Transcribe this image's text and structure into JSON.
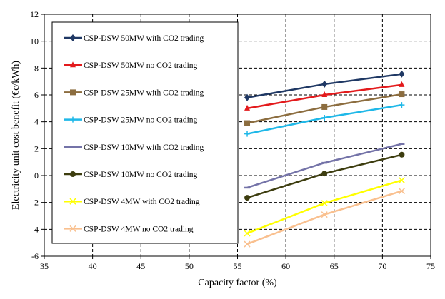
{
  "chart_data": {
    "type": "line",
    "title": "",
    "xlabel": "Capacity factor (%)",
    "ylabel": "Electricity unit cost benefit (€c/kWh)",
    "xlim": [
      35,
      75
    ],
    "ylim": [
      -6,
      12
    ],
    "xticks": [
      35,
      40,
      45,
      50,
      55,
      60,
      65,
      70,
      75
    ],
    "yticks": [
      -6,
      -4,
      -2,
      0,
      2,
      4,
      6,
      8,
      10,
      12
    ],
    "grid": true,
    "legend_position": "left",
    "series": [
      {
        "name": "CSP-DSW 50MW with CO2 trading",
        "color": "#1f3864",
        "marker": "diamond",
        "x": [
          56,
          64,
          72
        ],
        "values": [
          5.8,
          6.8,
          7.55
        ]
      },
      {
        "name": "CSP-DSW 50MW no CO2 trading",
        "color": "#e31a1c",
        "marker": "triangle",
        "x": [
          56,
          64,
          72
        ],
        "values": [
          5.0,
          6.0,
          6.75
        ]
      },
      {
        "name": "CSP-DSW 25MW with CO2 trading",
        "color": "#8c6d3f",
        "marker": "square",
        "x": [
          56,
          64,
          72
        ],
        "values": [
          3.9,
          5.1,
          6.05
        ]
      },
      {
        "name": "CSP-DSW 25MW no CO2 trading",
        "color": "#1fb8e8",
        "marker": "plus",
        "x": [
          56,
          64,
          72
        ],
        "values": [
          3.1,
          4.3,
          5.25
        ]
      },
      {
        "name": "CSP-DSW 10MW with CO2 trading",
        "color": "#7473a8",
        "marker": "dash",
        "x": [
          56,
          64,
          72
        ],
        "values": [
          -0.9,
          0.95,
          2.35
        ]
      },
      {
        "name": "CSP-DSW 10MW no CO2 trading",
        "color": "#3d3d0f",
        "marker": "circle",
        "x": [
          56,
          64,
          72
        ],
        "values": [
          -1.65,
          0.15,
          1.55
        ]
      },
      {
        "name": "CSP-DSW 4MW with CO2 trading",
        "color": "#ffff00",
        "marker": "cross",
        "x": [
          56,
          64,
          72
        ],
        "values": [
          -4.3,
          -2.05,
          -0.35
        ]
      },
      {
        "name": "CSP-DSW 4MW no CO2 trading",
        "color": "#f9c08f",
        "marker": "cross",
        "x": [
          56,
          64,
          72
        ],
        "values": [
          -5.1,
          -2.9,
          -1.15
        ]
      }
    ]
  }
}
